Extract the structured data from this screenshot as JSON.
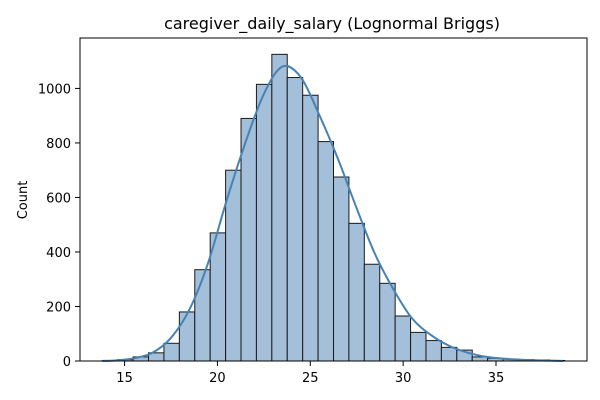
{
  "chart_data": {
    "type": "bar",
    "title": "caregiver_daily_salary (Lognormal Briggs)",
    "xlabel": "",
    "ylabel": "Count",
    "xlim": [
      12.6,
      39.9
    ],
    "ylim": [
      0,
      1185
    ],
    "xticks": [
      15,
      20,
      25,
      30,
      35
    ],
    "yticks": [
      0,
      200,
      400,
      600,
      800,
      1000
    ],
    "bin_start": 13.8,
    "bin_width": 0.83,
    "counts": [
      2,
      5,
      15,
      30,
      65,
      180,
      335,
      470,
      700,
      890,
      1015,
      1125,
      1040,
      975,
      805,
      675,
      505,
      355,
      285,
      165,
      105,
      75,
      50,
      40,
      15,
      10,
      7,
      5,
      4,
      2
    ],
    "kde": {
      "x": [
        13.8,
        14.5,
        15.5,
        16.5,
        17.5,
        18.5,
        19.5,
        20.5,
        21.5,
        22.5,
        23.5,
        24.5,
        25.5,
        26.5,
        27.5,
        28.5,
        29.5,
        30.5,
        31.5,
        32.5,
        33.5,
        34.5,
        35.5,
        36.5,
        37.5,
        38.6
      ],
      "y": [
        0,
        2,
        10,
        30,
        85,
        190,
        360,
        590,
        800,
        980,
        1080,
        1040,
        900,
        740,
        560,
        390,
        260,
        155,
        95,
        55,
        30,
        15,
        8,
        4,
        2,
        0
      ]
    },
    "grid": false,
    "style": {
      "bar_fill": "#a3bfd9",
      "bar_edge": "#1a1a1a",
      "line_color": "#4682b4"
    }
  }
}
